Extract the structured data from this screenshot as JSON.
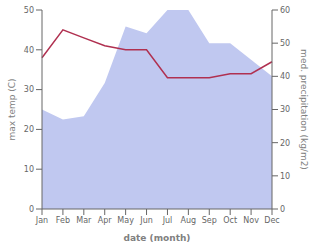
{
  "chart_data": {
    "type": "line",
    "xlabel": "date (month)",
    "ylabel": "max temp (C)",
    "y2label": "med. precipitation (kg/m2)",
    "categories": [
      "Jan",
      "Feb",
      "Mar",
      "Apr",
      "May",
      "Jun",
      "Jul",
      "Aug",
      "Sep",
      "Oct",
      "Nov",
      "Dec"
    ],
    "series": [
      {
        "type": "area",
        "axis": "y2",
        "color": "#c0c8f0",
        "values": [
          30,
          27,
          28,
          38,
          55,
          53,
          60,
          60,
          50,
          50,
          45,
          40
        ]
      },
      {
        "type": "line",
        "color": "#b03050",
        "values": [
          38,
          45,
          43,
          41,
          40,
          40,
          33,
          33,
          33,
          34,
          34,
          37
        ]
      }
    ],
    "ylim": [
      0,
      50
    ],
    "yticks": [
      0,
      10,
      20,
      30,
      40,
      50
    ],
    "y2lim": [
      0,
      60
    ],
    "y2ticks": [
      0,
      10,
      20,
      30,
      40,
      50,
      60
    ],
    "grid": false
  }
}
